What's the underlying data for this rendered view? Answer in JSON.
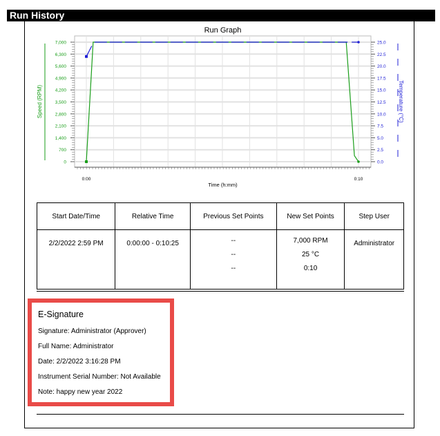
{
  "header": {
    "title": "Run History"
  },
  "chart_data": {
    "type": "line",
    "title": "Run Graph",
    "xlabel": "Time (h:mm)",
    "ylabel": "Speed (RPM)",
    "y2label": "Temperature (°C)",
    "xlim": [
      0,
      10
    ],
    "ylim": [
      0,
      7000
    ],
    "y2lim": [
      0,
      25
    ],
    "x_ticks": [
      "0:00",
      "0:10"
    ],
    "y_ticks": [
      "0",
      "700",
      "1,400",
      "2,100",
      "2,800",
      "3,500",
      "4,200",
      "4,900",
      "5,600",
      "6,300",
      "7,000"
    ],
    "y2_ticks": [
      "0.0",
      "2.5",
      "5.0",
      "7.5",
      "10.0",
      "12.5",
      "15.0",
      "17.5",
      "20.0",
      "22.5",
      "25.0"
    ],
    "grid": true,
    "series": [
      {
        "name": "Speed (RPM)",
        "color": "#1a9e1a",
        "axis": "left",
        "x": [
          0,
          0.25,
          9.55,
          9.85,
          10
        ],
        "y": [
          0,
          7000,
          7000,
          350,
          0
        ]
      },
      {
        "name": "Temperature (°C)",
        "color": "#1f1fd6",
        "axis": "right",
        "segments": [
          {
            "x": [
              0,
              0.2
            ],
            "y": [
              22,
              24.2
            ]
          },
          {
            "x": [
              0.3,
              9.6
            ],
            "y": [
              25,
              25
            ],
            "dashed": true
          },
          {
            "x": [
              9.75,
              10
            ],
            "y": [
              25,
              25
            ]
          }
        ]
      }
    ]
  },
  "table": {
    "headers": [
      "Start Date/Time",
      "Relative Time",
      "Previous Set Points",
      "New Set Points",
      "Step User"
    ],
    "rows": [
      {
        "start": "2/2/2022 2:59 PM",
        "relative": "0:00:00 - 0:10:25",
        "previous": [
          "--",
          "--",
          "--"
        ],
        "new": [
          "7,000 RPM",
          "25 °C",
          "0:10"
        ],
        "user": "Administrator"
      }
    ]
  },
  "esignature": {
    "title": "E-Signature",
    "signature": "Signature: Administrator (Approver)",
    "full_name": "Full Name: Administrator",
    "date": "Date: 2/2/2022 3:16:28 PM",
    "serial": "Instrument Serial Number: Not Available",
    "note": "Note: happy new year 2022",
    "highlight_color": "#e94b48"
  }
}
